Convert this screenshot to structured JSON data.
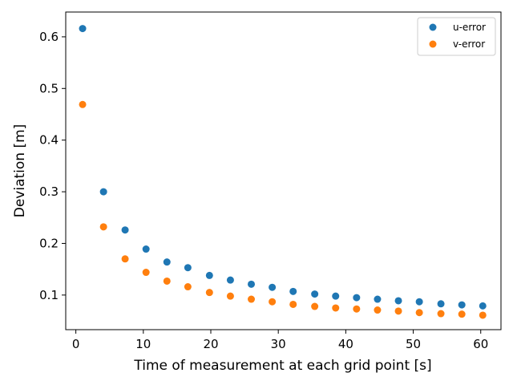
{
  "chart_data": {
    "type": "scatter",
    "xlabel": "Time of measurement at each grid point [s]",
    "ylabel": "Deviation [m]",
    "xlim": [
      -1.5,
      63
    ],
    "ylim": [
      0.033,
      0.648
    ],
    "xticks": [
      0,
      10,
      20,
      30,
      40,
      50,
      60
    ],
    "yticks": [
      0.1,
      0.2,
      0.3,
      0.4,
      0.5,
      0.6
    ],
    "x": [
      1,
      4.1,
      7.3,
      10.4,
      13.5,
      16.6,
      19.8,
      22.9,
      26,
      29.1,
      32.2,
      35.4,
      38.5,
      41.6,
      44.7,
      47.8,
      50.9,
      54.1,
      57.2,
      60.3
    ],
    "series": [
      {
        "name": "u-error",
        "color": "#1f77b4",
        "values": [
          0.616,
          0.3,
          0.226,
          0.189,
          0.164,
          0.153,
          0.138,
          0.129,
          0.121,
          0.115,
          0.107,
          0.102,
          0.098,
          0.095,
          0.092,
          0.089,
          0.087,
          0.083,
          0.081,
          0.079
        ]
      },
      {
        "name": "v-error",
        "color": "#ff7f0e",
        "values": [
          0.469,
          0.232,
          0.17,
          0.144,
          0.127,
          0.116,
          0.105,
          0.098,
          0.092,
          0.087,
          0.082,
          0.078,
          0.075,
          0.073,
          0.071,
          0.069,
          0.066,
          0.064,
          0.063,
          0.061
        ]
      }
    ],
    "legend": "top-right",
    "grid": false
  }
}
